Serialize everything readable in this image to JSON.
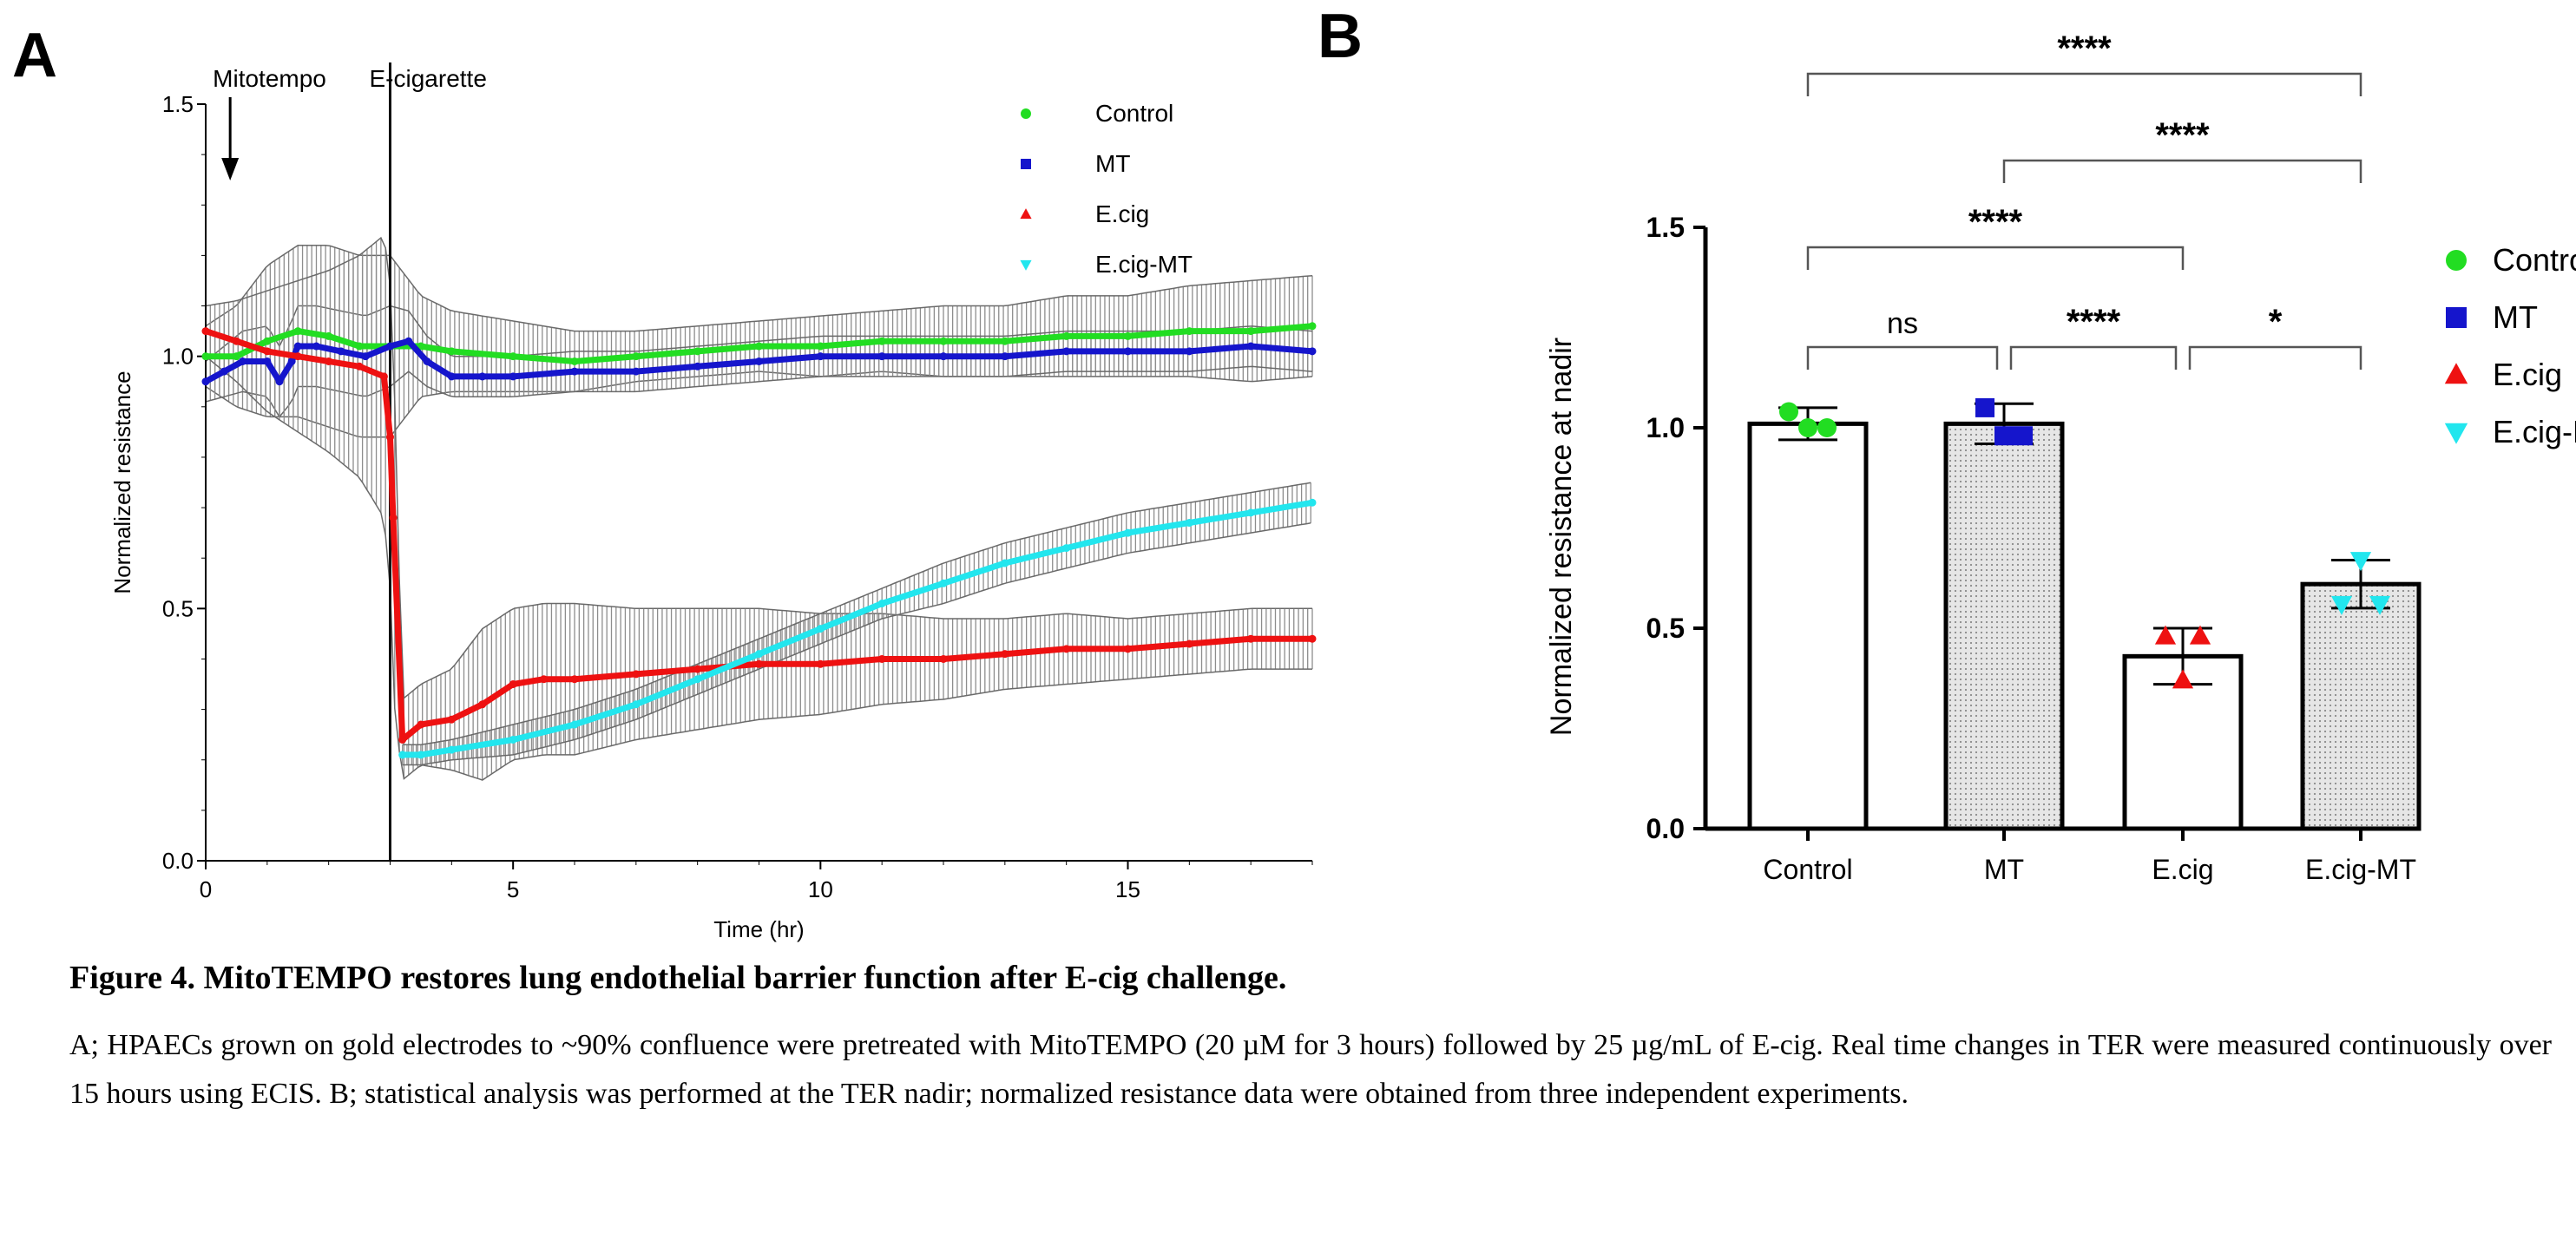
{
  "panels": {
    "a_label": "A",
    "b_label": "B"
  },
  "caption": {
    "title": "Figure 4. MitoTEMPO restores lung endothelial barrier function after E-cig challenge.",
    "body": "A; HPAECs grown on gold electrodes to ~90% confluence were pretreated with MitoTEMPO (20 µM for 3 hours) followed by 25 µg/mL of E-cig. Real time changes in TER were measured continuously over 15 hours using ECIS. B; statistical analysis was performed at the TER nadir; normalized resistance data were obtained from three independent experiments."
  },
  "chart_data": [
    {
      "panel": "A",
      "type": "line",
      "title": "",
      "xlabel": "Time (hr)",
      "ylabel": "Normalized resistance",
      "xlim": [
        0,
        18
      ],
      "ylim": [
        0,
        1.5
      ],
      "xticks": [
        0,
        5,
        10,
        15
      ],
      "yticks": [
        "0.0",
        "0.5",
        "1.0",
        "1.5"
      ],
      "annotations": [
        {
          "text": "Mitotempo",
          "x": 0.2
        },
        {
          "text": "E-cigarette",
          "x": 3.0
        }
      ],
      "legend_position": "top-right",
      "series": [
        {
          "name": "Control",
          "color": "#22dd22",
          "marker": "circle",
          "x": [
            0,
            0.5,
            1.0,
            1.5,
            2.0,
            2.5,
            3.0,
            3.5,
            4.0,
            5.0,
            6.0,
            7.0,
            8.0,
            9.0,
            10.0,
            11.0,
            12.0,
            13.0,
            14.0,
            15.0,
            16.0,
            17.0,
            18.0
          ],
          "y": [
            1.0,
            1.0,
            1.03,
            1.05,
            1.04,
            1.02,
            1.02,
            1.02,
            1.01,
            1.0,
            0.99,
            1.0,
            1.01,
            1.02,
            1.02,
            1.03,
            1.03,
            1.03,
            1.04,
            1.04,
            1.05,
            1.05,
            1.06
          ],
          "err": [
            0.06,
            0.1,
            0.15,
            0.17,
            0.18,
            0.18,
            0.18,
            0.1,
            0.08,
            0.07,
            0.06,
            0.05,
            0.05,
            0.05,
            0.06,
            0.06,
            0.07,
            0.07,
            0.08,
            0.08,
            0.09,
            0.1,
            0.1
          ]
        },
        {
          "name": "MT",
          "color": "#1515cc",
          "marker": "square",
          "x": [
            0,
            0.3,
            0.6,
            1.0,
            1.2,
            1.4,
            1.5,
            1.8,
            2.2,
            2.6,
            3.0,
            3.3,
            3.6,
            4.0,
            4.5,
            5.0,
            6.0,
            7.0,
            8.0,
            9.0,
            10.0,
            11.0,
            12.0,
            13.0,
            14.0,
            15.0,
            16.0,
            17.0,
            18.0
          ],
          "y": [
            0.95,
            0.97,
            0.99,
            0.99,
            0.95,
            0.99,
            1.02,
            1.02,
            1.01,
            1.0,
            1.02,
            1.03,
            0.99,
            0.96,
            0.96,
            0.96,
            0.97,
            0.97,
            0.98,
            0.99,
            1.0,
            1.0,
            1.0,
            1.0,
            1.01,
            1.01,
            1.01,
            1.02,
            1.01
          ],
          "err": [
            0.04,
            0.05,
            0.06,
            0.07,
            0.07,
            0.08,
            0.08,
            0.08,
            0.08,
            0.08,
            0.08,
            0.06,
            0.05,
            0.04,
            0.04,
            0.04,
            0.04,
            0.04,
            0.04,
            0.04,
            0.04,
            0.04,
            0.04,
            0.04,
            0.04,
            0.04,
            0.04,
            0.04,
            0.04
          ]
        },
        {
          "name": "E.cig",
          "color": "#ee1111",
          "marker": "triangle-up",
          "x": [
            0,
            0.5,
            1.0,
            1.5,
            2.0,
            2.5,
            2.9,
            3.0,
            3.05,
            3.2,
            3.5,
            4.0,
            4.5,
            5.0,
            5.5,
            6.0,
            7.0,
            8.0,
            9.0,
            10.0,
            11.0,
            12.0,
            13.0,
            14.0,
            15.0,
            16.0,
            17.0,
            18.0
          ],
          "y": [
            1.05,
            1.03,
            1.01,
            1.0,
            0.99,
            0.98,
            0.96,
            0.84,
            0.68,
            0.24,
            0.27,
            0.28,
            0.31,
            0.35,
            0.36,
            0.36,
            0.37,
            0.38,
            0.39,
            0.39,
            0.4,
            0.4,
            0.41,
            0.42,
            0.42,
            0.43,
            0.44,
            0.44
          ],
          "err": [
            0.05,
            0.08,
            0.12,
            0.15,
            0.18,
            0.22,
            0.28,
            0.3,
            0.35,
            0.08,
            0.08,
            0.1,
            0.15,
            0.15,
            0.15,
            0.15,
            0.13,
            0.12,
            0.11,
            0.1,
            0.09,
            0.08,
            0.07,
            0.07,
            0.06,
            0.06,
            0.06,
            0.06
          ]
        },
        {
          "name": "E.cig-MT",
          "color": "#22e6ee",
          "marker": "triangle-down",
          "x": [
            3.2,
            3.5,
            4.0,
            5.0,
            6.0,
            7.0,
            8.0,
            9.0,
            10.0,
            11.0,
            12.0,
            13.0,
            14.0,
            15.0,
            16.0,
            17.0,
            18.0
          ],
          "y": [
            0.21,
            0.21,
            0.22,
            0.24,
            0.27,
            0.31,
            0.36,
            0.41,
            0.46,
            0.51,
            0.55,
            0.59,
            0.62,
            0.65,
            0.67,
            0.69,
            0.71
          ],
          "err": [
            0.02,
            0.02,
            0.02,
            0.03,
            0.03,
            0.03,
            0.03,
            0.03,
            0.03,
            0.03,
            0.04,
            0.04,
            0.04,
            0.04,
            0.04,
            0.04,
            0.04
          ]
        }
      ]
    },
    {
      "panel": "B",
      "type": "bar",
      "title": "",
      "xlabel": "",
      "ylabel": "Normalized resistance at nadir",
      "ylim": [
        0,
        1.5
      ],
      "yticks": [
        "0.0",
        "0.5",
        "1.0",
        "1.5"
      ],
      "categories": [
        "Control",
        "MT",
        "E.cig",
        "E.cig-MT"
      ],
      "values": [
        1.01,
        1.01,
        0.43,
        0.61
      ],
      "errors": [
        0.04,
        0.05,
        0.07,
        0.06
      ],
      "fills": [
        "white",
        "dotted-gray",
        "white",
        "dotted-gray"
      ],
      "points": [
        [
          1.04,
          1.0,
          1.0
        ],
        [
          1.05,
          0.98,
          0.98
        ],
        [
          0.48,
          0.48,
          0.37
        ],
        [
          0.67,
          0.56,
          0.56
        ]
      ],
      "legend_position": "right",
      "series": [
        {
          "name": "Control",
          "color": "#22dd22",
          "marker": "circle"
        },
        {
          "name": "MT",
          "color": "#1515cc",
          "marker": "square"
        },
        {
          "name": "E.cig",
          "color": "#ee1111",
          "marker": "triangle-up"
        },
        {
          "name": "E.cig-MT",
          "color": "#22e6ee",
          "marker": "triangle-down"
        }
      ],
      "comparisons": [
        {
          "from": "Control",
          "to": "E.cig-MT",
          "label": "****"
        },
        {
          "from": "MT",
          "to": "E.cig-MT",
          "label": "****"
        },
        {
          "from": "Control",
          "to": "E.cig",
          "label": "****"
        },
        {
          "from": "Control",
          "to": "MT",
          "label": "ns"
        },
        {
          "from": "MT",
          "to": "E.cig",
          "label": "****"
        },
        {
          "from": "E.cig",
          "to": "E.cig-MT",
          "label": "*"
        }
      ]
    }
  ]
}
